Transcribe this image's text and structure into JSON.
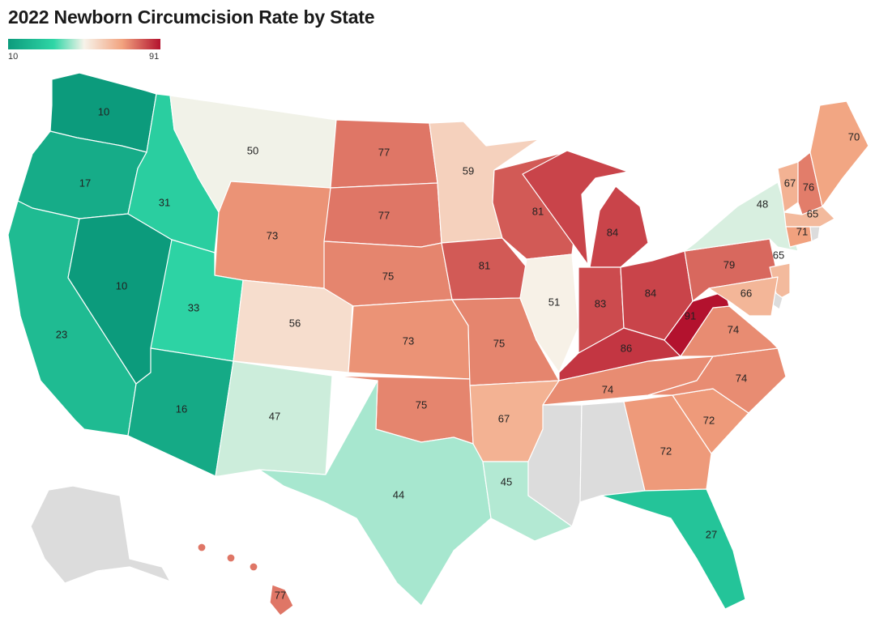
{
  "title": "2022 Newborn Circumcision Rate by State",
  "legend": {
    "min": "10",
    "max": "91",
    "colors": [
      "#0c9b7c",
      "#2fd6a6",
      "#f7f3ea",
      "#f2a37f",
      "#b3122e"
    ]
  },
  "chart_data": {
    "type": "choropleth",
    "title": "2022 Newborn Circumcision Rate by State",
    "scale": [
      10,
      91
    ],
    "states": [
      {
        "id": "WA",
        "value": 10
      },
      {
        "id": "OR",
        "value": 17
      },
      {
        "id": "CA",
        "value": 23
      },
      {
        "id": "NV",
        "value": 10
      },
      {
        "id": "ID",
        "value": 31
      },
      {
        "id": "UT",
        "value": 33
      },
      {
        "id": "AZ",
        "value": 16
      },
      {
        "id": "MT",
        "value": 50
      },
      {
        "id": "WY",
        "value": 73
      },
      {
        "id": "CO",
        "value": 56
      },
      {
        "id": "NM",
        "value": 47
      },
      {
        "id": "ND",
        "value": 77
      },
      {
        "id": "SD",
        "value": 77
      },
      {
        "id": "NE",
        "value": 75
      },
      {
        "id": "KS",
        "value": 73
      },
      {
        "id": "OK",
        "value": 75
      },
      {
        "id": "TX",
        "value": 44
      },
      {
        "id": "MN",
        "value": 59
      },
      {
        "id": "IA",
        "value": 81
      },
      {
        "id": "MO",
        "value": 75
      },
      {
        "id": "AR",
        "value": 67
      },
      {
        "id": "LA",
        "value": 45
      },
      {
        "id": "WI",
        "value": 81
      },
      {
        "id": "IL",
        "value": 51
      },
      {
        "id": "MI",
        "value": 84
      },
      {
        "id": "IN",
        "value": 83
      },
      {
        "id": "OH",
        "value": 84
      },
      {
        "id": "KY",
        "value": 86
      },
      {
        "id": "TN",
        "value": 74
      },
      {
        "id": "GA",
        "value": 72
      },
      {
        "id": "FL",
        "value": 27
      },
      {
        "id": "SC",
        "value": 72
      },
      {
        "id": "NC",
        "value": 74
      },
      {
        "id": "VA",
        "value": 74
      },
      {
        "id": "WV",
        "value": 91
      },
      {
        "id": "PA",
        "value": 79
      },
      {
        "id": "NY",
        "value": 48
      },
      {
        "id": "NJ",
        "value": 65
      },
      {
        "id": "MD",
        "value": 66
      },
      {
        "id": "ME",
        "value": 70
      },
      {
        "id": "VT",
        "value": 67
      },
      {
        "id": "NH",
        "value": 76
      },
      {
        "id": "MA",
        "value": 65
      },
      {
        "id": "CT",
        "value": 71
      },
      {
        "id": "HI",
        "value": 77
      },
      {
        "id": "MS",
        "value": null
      },
      {
        "id": "AL",
        "value": null
      },
      {
        "id": "AK",
        "value": null
      },
      {
        "id": "DE",
        "value": null
      },
      {
        "id": "RI",
        "value": null
      }
    ]
  }
}
